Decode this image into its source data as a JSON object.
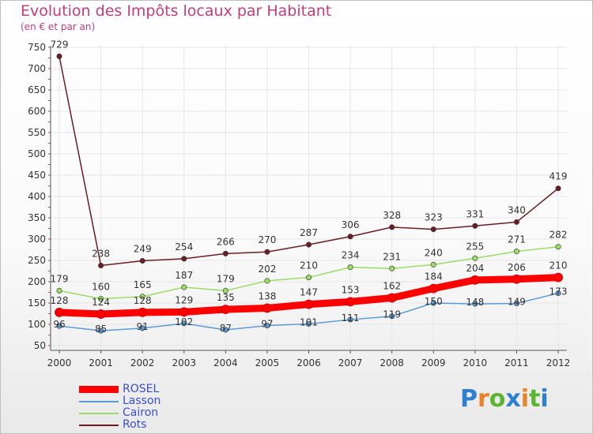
{
  "title": "Evolution des Impôts locaux par Habitant",
  "subtitle": "(en € et par an)",
  "logo": {
    "text": "Proxiti",
    "letter_colors": [
      "#2f7fd0",
      "#e8832a",
      "#5bb530",
      "#2f7fd0",
      "#e8832a",
      "#5bb530",
      "#2f7fd0"
    ]
  },
  "chart_data": {
    "type": "line",
    "x": [
      "2000",
      "2001",
      "2002",
      "2003",
      "2004",
      "2005",
      "2006",
      "2007",
      "2008",
      "2009",
      "2010",
      "2011",
      "2012"
    ],
    "ylim": [
      50,
      750
    ],
    "yticks": [
      "50",
      "100",
      "150",
      "200",
      "250",
      "300",
      "350",
      "400",
      "450",
      "500",
      "550",
      "600",
      "650",
      "700",
      "750"
    ],
    "legend_position": "bottom-left",
    "series": [
      {
        "name": "ROSEL",
        "color": "#ff0000",
        "values": [
          128,
          124,
          128,
          129,
          135,
          138,
          147,
          153,
          162,
          184,
          204,
          206,
          210
        ]
      },
      {
        "name": "Lasson",
        "color": "#5b9bd5",
        "values": [
          96,
          85,
          91,
          102,
          87,
          97,
          101,
          111,
          119,
          150,
          148,
          149,
          173
        ]
      },
      {
        "name": "Cairon",
        "color": "#99dd66",
        "values": [
          179,
          160,
          165,
          187,
          179,
          202,
          210,
          234,
          231,
          240,
          255,
          271,
          282
        ]
      },
      {
        "name": "Rots",
        "color": "#6b1e22",
        "values": [
          729,
          238,
          249,
          254,
          266,
          270,
          287,
          306,
          328,
          323,
          331,
          340,
          419
        ]
      }
    ]
  }
}
